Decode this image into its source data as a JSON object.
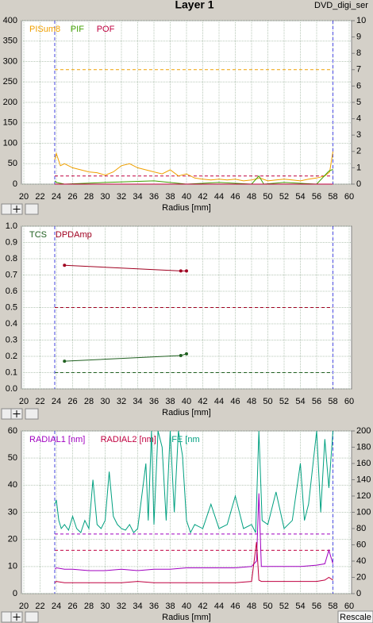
{
  "window": {
    "title": "Layer 1",
    "label": "DVD_digi_ser",
    "button": "Rescale"
  },
  "chart_data": [
    {
      "type": "line",
      "xlabel": "Radius [mm]",
      "xlim": [
        20,
        60
      ],
      "xticks": [
        20,
        22,
        24,
        26,
        28,
        30,
        32,
        34,
        36,
        38,
        40,
        42,
        44,
        46,
        48,
        50,
        52,
        54,
        56,
        58,
        60
      ],
      "ylim": [
        0,
        400
      ],
      "yticks": [
        0,
        50,
        100,
        150,
        200,
        250,
        300,
        350,
        400
      ],
      "y2lim": [
        0,
        10
      ],
      "y2ticks": [
        0,
        1,
        2,
        3,
        4,
        5,
        6,
        7,
        8,
        9,
        10
      ],
      "grid": true,
      "vlines": [
        {
          "value": 23.8,
          "color": "#4848e0"
        },
        {
          "value": 58,
          "color": "#4848e0"
        }
      ],
      "hlines": [
        {
          "value": 280,
          "color": "#f0a000",
          "axis": "y"
        },
        {
          "value": 0.5,
          "color": "#c00040",
          "axis": "y2"
        }
      ],
      "series": [
        {
          "name": "PISum8",
          "color": "#f0a000",
          "axis": "y",
          "x": [
            23.8,
            24,
            24.5,
            25,
            26,
            27,
            28,
            29,
            30,
            31,
            32,
            33,
            34,
            35,
            36,
            37,
            38,
            39,
            40,
            41,
            42,
            43,
            44,
            45,
            46,
            47,
            48,
            49,
            50,
            51,
            52,
            53,
            54,
            55,
            56,
            57,
            57.6,
            58
          ],
          "values": [
            60,
            75,
            45,
            50,
            40,
            35,
            30,
            28,
            22,
            30,
            45,
            50,
            40,
            35,
            30,
            25,
            35,
            20,
            25,
            15,
            12,
            10,
            12,
            10,
            12,
            8,
            10,
            15,
            8,
            10,
            12,
            10,
            8,
            12,
            15,
            20,
            30,
            80
          ]
        },
        {
          "name": "PIF",
          "color": "#40a000",
          "axis": "y2",
          "x": [
            23.8,
            24,
            25,
            30,
            36,
            40,
            44,
            48,
            48.9,
            49.5,
            52,
            56,
            57.5,
            58
          ],
          "values": [
            0.2,
            0.1,
            0,
            0.1,
            0.2,
            0,
            0.1,
            0,
            0.5,
            0,
            0.1,
            0,
            0.8,
            0.9
          ]
        },
        {
          "name": "POF",
          "color": "#c00040",
          "axis": "y2",
          "x": [
            23.8,
            58
          ],
          "values": [
            0,
            0
          ]
        }
      ]
    },
    {
      "type": "line",
      "xlabel": "Radius [mm]",
      "xlim": [
        20,
        60
      ],
      "xticks": [
        20,
        22,
        24,
        26,
        28,
        30,
        32,
        34,
        36,
        38,
        40,
        42,
        44,
        46,
        48,
        50,
        52,
        54,
        56,
        58,
        60
      ],
      "ylim": [
        0,
        1
      ],
      "yticks": [
        {
          "value": 0,
          "label": "0.0"
        },
        0.1,
        0.2,
        0.3,
        0.4,
        0.5,
        0.6,
        0.7,
        0.8,
        0.9,
        {
          "value": 1,
          "label": "1.0"
        }
      ],
      "grid": true,
      "vlines": [
        {
          "value": 23.8,
          "color": "#4848e0"
        },
        {
          "value": 58,
          "color": "#4848e0"
        }
      ],
      "hlines": [
        {
          "value": 0.5,
          "color": "#a00020",
          "axis": "y"
        },
        {
          "value": 0.1,
          "color": "#206020",
          "axis": "y"
        }
      ],
      "series": [
        {
          "name": "TCS",
          "color": "#206020",
          "axis": "y",
          "markers": true,
          "x": [
            25,
            39.3,
            40
          ],
          "values": [
            0.17,
            0.205,
            0.215
          ]
        },
        {
          "name": "DPDAmp",
          "color": "#a00020",
          "axis": "y",
          "markers": true,
          "x": [
            25,
            39.3,
            40
          ],
          "values": [
            0.76,
            0.725,
            0.725
          ]
        }
      ]
    },
    {
      "type": "line",
      "xlabel": "Radius [mm]",
      "xlim": [
        20,
        60
      ],
      "xticks": [
        20,
        22,
        24,
        26,
        28,
        30,
        32,
        34,
        36,
        38,
        40,
        42,
        44,
        46,
        48,
        50,
        52,
        54,
        56,
        58,
        60
      ],
      "ylim": [
        0,
        60
      ],
      "yticks": [
        0,
        10,
        20,
        30,
        40,
        50,
        60
      ],
      "y2lim": [
        0,
        200
      ],
      "y2ticks": [
        0,
        20,
        40,
        60,
        80,
        100,
        120,
        140,
        160,
        180,
        200
      ],
      "grid": true,
      "vlines": [
        {
          "value": 23.8,
          "color": "#4848e0"
        },
        {
          "value": 58,
          "color": "#4848e0"
        }
      ],
      "hlines": [
        {
          "value": 22,
          "color": "#a000c0",
          "axis": "y"
        },
        {
          "value": 16,
          "color": "#c00040",
          "axis": "y"
        }
      ],
      "series": [
        {
          "name": "RADIAL1 [nm]",
          "color": "#a000c0",
          "axis": "y",
          "x": [
            23.8,
            24,
            25,
            26,
            28,
            30,
            32,
            34,
            36,
            38,
            40,
            42,
            44,
            46,
            48,
            48.6,
            48.9,
            49.2,
            50,
            52,
            54,
            56,
            57,
            57.5,
            58
          ],
          "values": [
            9,
            9.5,
            9,
            9,
            8.5,
            8.5,
            9,
            8.5,
            9,
            9,
            9.5,
            9.5,
            9.5,
            9.5,
            10,
            12,
            37,
            10,
            10,
            10,
            10,
            10.5,
            11,
            16,
            11
          ]
        },
        {
          "name": "RADIAL2 [nm]",
          "color": "#c00040",
          "axis": "y",
          "x": [
            23.8,
            24,
            25,
            26,
            28,
            30,
            32,
            34,
            36,
            38,
            40,
            42,
            44,
            46,
            48,
            48.6,
            48.9,
            49.2,
            50,
            52,
            54,
            56,
            57,
            57.5,
            58
          ],
          "values": [
            4,
            4.5,
            4,
            4,
            4,
            4,
            4,
            4.5,
            4,
            4,
            4,
            4,
            4,
            4,
            4.5,
            19,
            5,
            4.5,
            4.5,
            4.5,
            4.5,
            4.5,
            5,
            6,
            5
          ]
        },
        {
          "name": "FE [nm",
          "color": "#00a080",
          "axis": "y2",
          "x": [
            23.8,
            24,
            24.3,
            24.6,
            25,
            25.5,
            26,
            26.5,
            27,
            27.5,
            28,
            28.5,
            29,
            29.5,
            30,
            30.5,
            31,
            31.5,
            32,
            32.5,
            33,
            33.5,
            34,
            35,
            35.3,
            35.7,
            36,
            36.5,
            37,
            37.5,
            38,
            38.5,
            39,
            39.5,
            40,
            40.5,
            41,
            42,
            43,
            44,
            45,
            46,
            47,
            48,
            48.5,
            48.9,
            49.3,
            50,
            51,
            52,
            53,
            54,
            54.5,
            55,
            56,
            56.5,
            57,
            57.5,
            58
          ],
          "values": [
            110,
            115,
            90,
            80,
            85,
            78,
            95,
            80,
            75,
            90,
            80,
            140,
            85,
            80,
            90,
            150,
            95,
            85,
            80,
            78,
            85,
            75,
            80,
            160,
            90,
            200,
            85,
            200,
            180,
            90,
            200,
            100,
            200,
            170,
            90,
            75,
            85,
            80,
            110,
            80,
            85,
            120,
            80,
            85,
            75,
            200,
            90,
            85,
            125,
            80,
            90,
            160,
            90,
            110,
            200,
            100,
            190,
            130,
            200
          ]
        }
      ]
    }
  ]
}
